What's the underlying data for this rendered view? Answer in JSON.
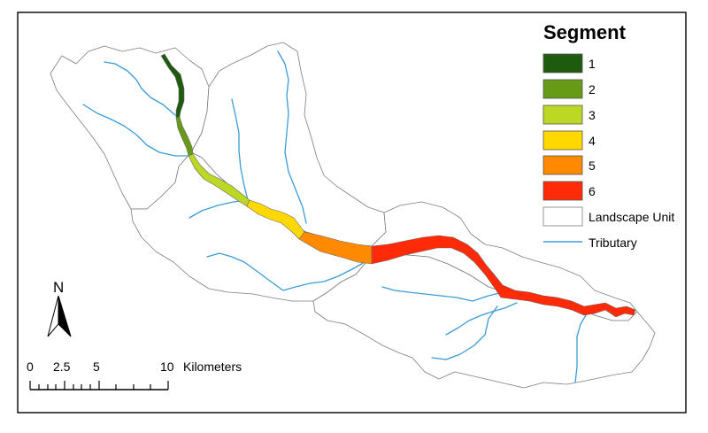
{
  "legend": {
    "title": "Segment",
    "items": [
      {
        "label": "1",
        "color": "#1e5b0e"
      },
      {
        "label": "2",
        "color": "#679a17"
      },
      {
        "label": "3",
        "color": "#bcd724"
      },
      {
        "label": "4",
        "color": "#ffd800"
      },
      {
        "label": "5",
        "color": "#ff8a00"
      },
      {
        "label": "6",
        "color": "#ff2b08"
      }
    ],
    "landscape_unit_label": "Landscape Unit",
    "tributary_label": "Tributary",
    "tributary_color": "#3c9bd6"
  },
  "north_arrow": {
    "label": "N"
  },
  "scale_bar": {
    "ticks": [
      "0",
      "2.5",
      "5",
      "10"
    ],
    "unit": "Kilometers"
  }
}
